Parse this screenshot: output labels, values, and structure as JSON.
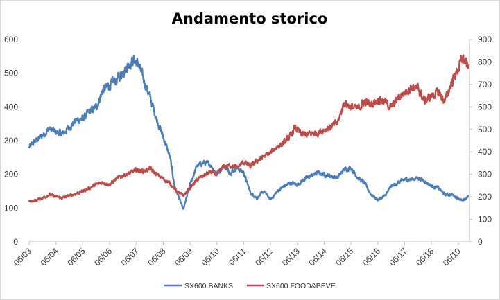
{
  "chart_data": {
    "type": "line",
    "title": "Andamento storico",
    "xlabel": "",
    "ylabel_left": "",
    "ylabel_right": "",
    "x_tick_labels": [
      "06/03",
      "06/04",
      "06/05",
      "06/06",
      "06/07",
      "06/08",
      "06/09",
      "06/10",
      "06/11",
      "06/12",
      "06/13",
      "06/14",
      "06/15",
      "06/16",
      "06/17",
      "06/18",
      "06/19"
    ],
    "ylim_left": [
      0,
      600
    ],
    "ylim_right": [
      0,
      900
    ],
    "y_ticks_left": [
      0,
      100,
      200,
      300,
      400,
      500,
      600
    ],
    "y_ticks_right": [
      0,
      100,
      200,
      300,
      400,
      500,
      600,
      700,
      800,
      900
    ],
    "grid": false,
    "legend_position": "bottom",
    "series": [
      {
        "name": "SX600 BANKS",
        "axis": "left",
        "color": "#4a7ebb",
        "points": [
          [
            "2003-06-01",
            280
          ],
          [
            "2003-09-01",
            300
          ],
          [
            "2003-12-01",
            315
          ],
          [
            "2004-03-01",
            335
          ],
          [
            "2004-06-01",
            325
          ],
          [
            "2004-09-01",
            320
          ],
          [
            "2004-12-01",
            340
          ],
          [
            "2005-03-01",
            360
          ],
          [
            "2005-06-01",
            365
          ],
          [
            "2005-09-01",
            385
          ],
          [
            "2005-12-01",
            400
          ],
          [
            "2006-03-01",
            450
          ],
          [
            "2006-06-01",
            465
          ],
          [
            "2006-09-01",
            480
          ],
          [
            "2006-12-01",
            505
          ],
          [
            "2007-03-01",
            530
          ],
          [
            "2007-05-01",
            540
          ],
          [
            "2007-07-01",
            525
          ],
          [
            "2007-09-01",
            485
          ],
          [
            "2007-12-01",
            430
          ],
          [
            "2008-03-01",
            365
          ],
          [
            "2008-06-01",
            310
          ],
          [
            "2008-09-01",
            250
          ],
          [
            "2008-11-01",
            165
          ],
          [
            "2009-01-01",
            130
          ],
          [
            "2009-03-01",
            95
          ],
          [
            "2009-06-01",
            170
          ],
          [
            "2009-09-01",
            225
          ],
          [
            "2009-12-01",
            235
          ],
          [
            "2010-03-01",
            230
          ],
          [
            "2010-06-01",
            200
          ],
          [
            "2010-09-01",
            225
          ],
          [
            "2010-12-01",
            205
          ],
          [
            "2011-03-01",
            220
          ],
          [
            "2011-06-01",
            205
          ],
          [
            "2011-09-01",
            145
          ],
          [
            "2011-12-01",
            130
          ],
          [
            "2012-03-01",
            150
          ],
          [
            "2012-06-01",
            125
          ],
          [
            "2012-09-01",
            150
          ],
          [
            "2012-12-01",
            165
          ],
          [
            "2013-03-01",
            175
          ],
          [
            "2013-06-01",
            170
          ],
          [
            "2013-09-01",
            185
          ],
          [
            "2013-12-01",
            195
          ],
          [
            "2014-03-01",
            205
          ],
          [
            "2014-06-01",
            200
          ],
          [
            "2014-09-01",
            195
          ],
          [
            "2014-12-01",
            190
          ],
          [
            "2015-03-01",
            215
          ],
          [
            "2015-06-01",
            220
          ],
          [
            "2015-09-01",
            190
          ],
          [
            "2015-12-01",
            175
          ],
          [
            "2016-03-01",
            140
          ],
          [
            "2016-06-01",
            125
          ],
          [
            "2016-09-01",
            135
          ],
          [
            "2016-12-01",
            165
          ],
          [
            "2017-03-01",
            175
          ],
          [
            "2017-06-01",
            185
          ],
          [
            "2017-09-01",
            185
          ],
          [
            "2017-12-01",
            190
          ],
          [
            "2018-03-01",
            180
          ],
          [
            "2018-06-01",
            165
          ],
          [
            "2018-09-01",
            160
          ],
          [
            "2018-12-01",
            140
          ],
          [
            "2019-03-01",
            140
          ],
          [
            "2019-06-01",
            130
          ],
          [
            "2019-08-01",
            120
          ],
          [
            "2019-10-15",
            135
          ]
        ]
      },
      {
        "name": "SX600 FOOD&BEVE",
        "axis": "right",
        "color": "#be4b48",
        "points": [
          [
            "2003-06-01",
            180
          ],
          [
            "2003-09-01",
            185
          ],
          [
            "2003-12-01",
            195
          ],
          [
            "2004-03-01",
            210
          ],
          [
            "2004-06-01",
            200
          ],
          [
            "2004-09-01",
            195
          ],
          [
            "2004-12-01",
            205
          ],
          [
            "2005-03-01",
            215
          ],
          [
            "2005-06-01",
            225
          ],
          [
            "2005-09-01",
            240
          ],
          [
            "2005-12-01",
            255
          ],
          [
            "2006-03-01",
            265
          ],
          [
            "2006-06-01",
            255
          ],
          [
            "2006-09-01",
            280
          ],
          [
            "2006-12-01",
            295
          ],
          [
            "2007-03-01",
            305
          ],
          [
            "2007-06-01",
            320
          ],
          [
            "2007-09-01",
            315
          ],
          [
            "2007-12-01",
            325
          ],
          [
            "2008-03-01",
            300
          ],
          [
            "2008-06-01",
            280
          ],
          [
            "2008-09-01",
            260
          ],
          [
            "2008-12-01",
            225
          ],
          [
            "2009-03-01",
            205
          ],
          [
            "2009-06-01",
            240
          ],
          [
            "2009-09-01",
            275
          ],
          [
            "2009-12-01",
            295
          ],
          [
            "2010-03-01",
            310
          ],
          [
            "2010-06-01",
            300
          ],
          [
            "2010-09-01",
            335
          ],
          [
            "2010-12-01",
            340
          ],
          [
            "2011-03-01",
            330
          ],
          [
            "2011-06-01",
            355
          ],
          [
            "2011-09-01",
            335
          ],
          [
            "2011-12-01",
            360
          ],
          [
            "2012-03-01",
            380
          ],
          [
            "2012-06-01",
            395
          ],
          [
            "2012-09-01",
            425
          ],
          [
            "2012-12-01",
            440
          ],
          [
            "2013-03-01",
            470
          ],
          [
            "2013-05-01",
            510
          ],
          [
            "2013-08-01",
            475
          ],
          [
            "2013-12-01",
            480
          ],
          [
            "2014-03-01",
            485
          ],
          [
            "2014-06-01",
            500
          ],
          [
            "2014-09-01",
            510
          ],
          [
            "2014-12-01",
            530
          ],
          [
            "2015-03-01",
            620
          ],
          [
            "2015-06-01",
            600
          ],
          [
            "2015-09-01",
            590
          ],
          [
            "2015-12-01",
            625
          ],
          [
            "2016-03-01",
            610
          ],
          [
            "2016-06-01",
            635
          ],
          [
            "2016-09-01",
            625
          ],
          [
            "2016-12-01",
            595
          ],
          [
            "2017-03-01",
            640
          ],
          [
            "2017-06-01",
            665
          ],
          [
            "2017-09-01",
            690
          ],
          [
            "2017-12-01",
            680
          ],
          [
            "2018-03-01",
            625
          ],
          [
            "2018-06-01",
            650
          ],
          [
            "2018-09-01",
            665
          ],
          [
            "2018-12-01",
            625
          ],
          [
            "2019-03-01",
            710
          ],
          [
            "2019-06-01",
            770
          ],
          [
            "2019-08-01",
            820
          ],
          [
            "2019-10-15",
            770
          ]
        ]
      }
    ]
  }
}
